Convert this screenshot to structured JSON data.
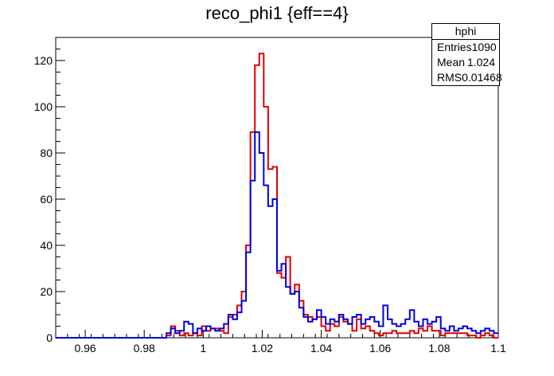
{
  "chart_data": {
    "type": "histogram",
    "title": "reco_phi1 {eff==4}",
    "xlabel": "",
    "ylabel": "",
    "xlim": [
      0.95,
      1.1
    ],
    "ylim": [
      0,
      130
    ],
    "xticks": [
      0.96,
      0.98,
      1,
      1.02,
      1.04,
      1.06,
      1.08,
      1.1
    ],
    "xtick_labels": [
      "0.96",
      "0.98",
      "1",
      "1.02",
      "1.04",
      "1.06",
      "1.08",
      "1.1"
    ],
    "yticks": [
      0,
      20,
      40,
      60,
      80,
      100,
      120
    ],
    "ytick_labels": [
      "0",
      "20",
      "40",
      "60",
      "80",
      "100",
      "120"
    ],
    "bins": {
      "start": 0.95,
      "width": 0.0015,
      "count": 100
    },
    "grid": false,
    "legend": "none",
    "series": [
      {
        "color": "#dd0000",
        "values": [
          0,
          0,
          0,
          0,
          0,
          0,
          0,
          0,
          0,
          0,
          0,
          0,
          0,
          0,
          0,
          0,
          0,
          0,
          0,
          0,
          0,
          0,
          0,
          0,
          0,
          1,
          5,
          3,
          1,
          2,
          1,
          2,
          1,
          5,
          3,
          4,
          4,
          3,
          2,
          9,
          10,
          14,
          20,
          40,
          89,
          118,
          123,
          100,
          73,
          74,
          28,
          26,
          35,
          19,
          23,
          16,
          10,
          9,
          8,
          9,
          5,
          3,
          6,
          5,
          9,
          7,
          6,
          3,
          8,
          4,
          5,
          3,
          2,
          1,
          2,
          2,
          3,
          2,
          2,
          2,
          3,
          2,
          4,
          3,
          5,
          3,
          3,
          1,
          2,
          2,
          2,
          2,
          2,
          1,
          1,
          0,
          1,
          2,
          1,
          0
        ]
      },
      {
        "color": "#0000dd",
        "values": [
          0,
          0,
          0,
          0,
          0,
          0,
          0,
          0,
          0,
          0,
          0,
          0,
          0,
          0,
          0,
          0,
          0,
          0,
          0,
          0,
          0,
          0,
          0,
          0,
          0,
          2,
          4,
          2,
          3,
          7,
          6,
          2,
          4,
          3,
          5,
          4,
          3,
          4,
          6,
          10,
          8,
          11,
          16,
          37,
          68,
          89,
          80,
          66,
          57,
          60,
          29,
          32,
          22,
          19,
          20,
          13,
          9,
          7,
          8,
          12,
          9,
          6,
          8,
          7,
          10,
          8,
          6,
          9,
          10,
          6,
          8,
          9,
          7,
          5,
          14,
          8,
          6,
          5,
          6,
          8,
          12,
          7,
          5,
          8,
          6,
          7,
          9,
          4,
          3,
          5,
          3,
          4,
          5,
          4,
          3,
          2,
          3,
          4,
          3,
          2
        ]
      }
    ]
  },
  "stats_box": {
    "name": "hphi",
    "rows": [
      {
        "label": "Entries",
        "value": "1090"
      },
      {
        "label": "Mean",
        "value": "1.024"
      },
      {
        "label": "RMS",
        "value": "0.01468"
      }
    ]
  }
}
